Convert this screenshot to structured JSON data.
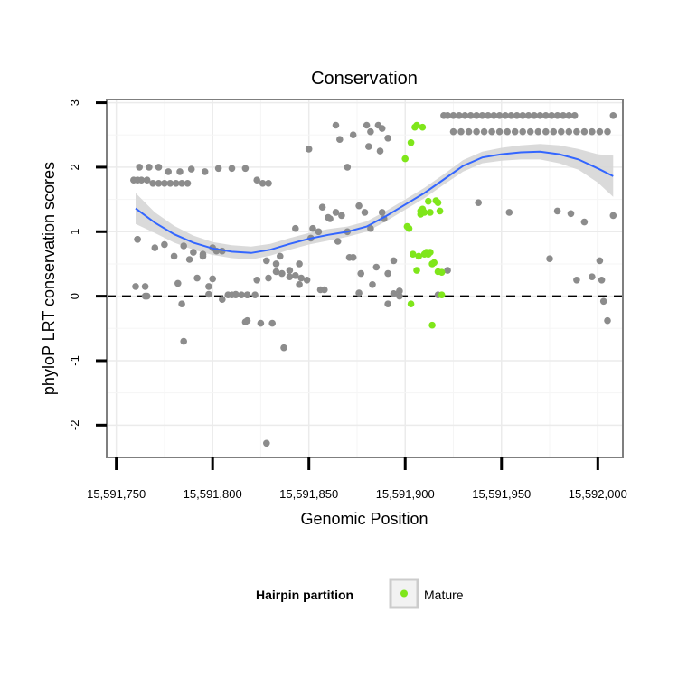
{
  "chart_data": {
    "type": "scatter",
    "title": "Conservation",
    "xlabel": "Genomic Position",
    "ylabel": "phyloP LRT conservation scores",
    "xlim": [
      15591745,
      15592013
    ],
    "ylim": [
      -2.5,
      3.05
    ],
    "x_ticks": [
      15591750,
      15591800,
      15591850,
      15591900,
      15591950,
      15592000
    ],
    "x_tick_labels": [
      "15,591,750",
      "15,591,800",
      "15,591,850",
      "15,591,900",
      "15,591,950",
      "15,592,000"
    ],
    "y_ticks": [
      -2,
      -1,
      0,
      1,
      2,
      3
    ],
    "y_tick_labels": [
      "-2",
      "-1",
      "0",
      "1",
      "2",
      "3"
    ],
    "grid": true,
    "reference_line": {
      "y": 0,
      "style": "dashed"
    },
    "legend": {
      "title": "Hairpin partition",
      "placement": "bottom",
      "entries": [
        "Mature"
      ]
    },
    "colors": {
      "other": "#8c8c8c",
      "mature": "#7fe61a",
      "smooth": "#3366ff",
      "band": "#d6d6d6",
      "panel_border": "#7f7f7f"
    },
    "series": [
      {
        "group": "other",
        "x": [
          15591759,
          15591761,
          15591763,
          15591766,
          15591769,
          15591772,
          15591775,
          15591778,
          15591781,
          15591784,
          15591787,
          15591762,
          15591767,
          15591772,
          15591777,
          15591783,
          15591789,
          15591796,
          15591803,
          15591810,
          15591817,
          15591823,
          15591826,
          15591829,
          15591760,
          15591765,
          15591770,
          15591775,
          15591780,
          15591785,
          15591790,
          15591795,
          15591800,
          15591805,
          15591810,
          15591815,
          15591818,
          15591822,
          15591828,
          15591833,
          15591836,
          15591840,
          15591843,
          15591846,
          15591849,
          15591852,
          15591855,
          15591858,
          15591861,
          15591864,
          15591867,
          15591870,
          15591873,
          15591876,
          15591879,
          15591882,
          15591885,
          15591888,
          15591891,
          15591894,
          15591897,
          15591761,
          15591766,
          15591782,
          15591788,
          15591795,
          15591798,
          15591802,
          15591808,
          15591812,
          15591817,
          15591823,
          15591829,
          15591835,
          15591840,
          15591845,
          15591851,
          15591856,
          15591860,
          15591865,
          15591871,
          15591877,
          15591883,
          15591889,
          15591761,
          15591765,
          15591784,
          15591792,
          15591798,
          15591805,
          15591812,
          15591818,
          15591825,
          15591831,
          15591837,
          15591843,
          15591850,
          15591857,
          15591864,
          15591870,
          15591876,
          15591882,
          15591888,
          15591894,
          15591785,
          15591800,
          15591818,
          15591828,
          15591845,
          15591833,
          15591866,
          15591873,
          15591881,
          15591887,
          15591891,
          15591917,
          15591922,
          15591938,
          15591954,
          15591975,
          15591986,
          15591989,
          15591997,
          15592001,
          15592003,
          15592005,
          15591979,
          15592008,
          15592002,
          15591993,
          15591920,
          15591922,
          15591925,
          15591928,
          15591931,
          15591934,
          15591937,
          15591940,
          15591943,
          15591946,
          15591949,
          15591952,
          15591955,
          15591958,
          15591961,
          15591964,
          15591967,
          15591970,
          15591973,
          15591976,
          15591979,
          15591982,
          15591985,
          15591988,
          15591925,
          15591929,
          15591933,
          15591937,
          15591941,
          15591945,
          15591949,
          15591953,
          15591957,
          15591961,
          15591965,
          15591969,
          15591973,
          15591977,
          15591981,
          15591985,
          15591989,
          15591993,
          15591997,
          15592001,
          15592005,
          15592008,
          15591891,
          15591897,
          15591886,
          15591880
        ],
        "y": [
          1.8,
          1.8,
          1.8,
          1.8,
          1.75,
          1.75,
          1.75,
          1.75,
          1.75,
          1.75,
          1.75,
          2.0,
          2.0,
          2.0,
          1.93,
          1.93,
          1.97,
          1.93,
          1.98,
          1.98,
          1.98,
          1.8,
          1.75,
          1.75,
          0.15,
          0.15,
          0.75,
          0.8,
          0.62,
          0.78,
          0.68,
          0.62,
          0.75,
          0.7,
          0.02,
          0.02,
          0.02,
          0.02,
          0.55,
          0.5,
          0.35,
          0.4,
          0.32,
          0.28,
          0.25,
          1.05,
          1.0,
          0.1,
          1.2,
          1.3,
          1.25,
          1.0,
          0.6,
          1.4,
          1.3,
          1.05,
          0.45,
          1.3,
          0.35,
          0.55,
          0.08,
          0.88,
          0.0,
          0.2,
          0.57,
          0.65,
          0.15,
          0.7,
          0.02,
          0.03,
          -0.4,
          0.25,
          0.28,
          0.62,
          0.3,
          0.18,
          0.9,
          0.1,
          1.22,
          0.85,
          0.6,
          0.35,
          0.18,
          1.2,
          0.88,
          0.0,
          -0.12,
          0.28,
          0.03,
          -0.05,
          0.02,
          -0.38,
          -0.42,
          -0.42,
          -0.8,
          1.05,
          2.28,
          1.38,
          2.65,
          2.0,
          0.05,
          2.55,
          2.6,
          0.04,
          -0.7,
          0.27,
          0.02,
          -2.28,
          0.5,
          0.38,
          2.43,
          2.5,
          2.32,
          2.25,
          2.45,
          0.02,
          0.4,
          1.45,
          1.3,
          0.58,
          1.28,
          0.25,
          0.3,
          0.55,
          -0.08,
          -0.38,
          1.32,
          1.25,
          0.25,
          1.15,
          2.8,
          2.8,
          2.8,
          2.8,
          2.8,
          2.8,
          2.8,
          2.8,
          2.8,
          2.8,
          2.8,
          2.8,
          2.8,
          2.8,
          2.8,
          2.8,
          2.8,
          2.8,
          2.8,
          2.8,
          2.8,
          2.8,
          2.8,
          2.8,
          2.55,
          2.55,
          2.55,
          2.55,
          2.55,
          2.55,
          2.55,
          2.55,
          2.55,
          2.55,
          2.55,
          2.55,
          2.55,
          2.55,
          2.55,
          2.55,
          2.55,
          2.55,
          2.55,
          2.55,
          2.55,
          2.8,
          -0.12,
          0.0,
          2.65,
          2.65
        ]
      },
      {
        "group": "mature",
        "x": [
          15591900,
          15591903,
          15591905,
          15591906,
          15591908,
          15591909,
          15591910,
          15591911,
          15591912,
          15591913,
          15591914,
          15591916,
          15591917,
          15591918,
          15591919,
          15591901,
          15591902,
          15591903,
          15591904,
          15591906,
          15591907,
          15591908,
          15591909,
          15591910,
          15591912,
          15591913,
          15591914,
          15591915,
          15591917,
          15591919
        ],
        "y": [
          2.13,
          2.38,
          2.62,
          2.65,
          1.27,
          1.35,
          1.3,
          0.68,
          0.65,
          0.68,
          0.5,
          1.48,
          1.45,
          1.32,
          0.37,
          1.08,
          1.05,
          -0.12,
          0.65,
          0.4,
          0.62,
          1.32,
          2.62,
          0.65,
          1.47,
          1.3,
          -0.45,
          0.52,
          0.38,
          0.02
        ]
      }
    ],
    "smooth": {
      "x": [
        15591760,
        15591770,
        15591780,
        15591790,
        15591800,
        15591810,
        15591820,
        15591830,
        15591840,
        15591850,
        15591860,
        15591870,
        15591880,
        15591890,
        15591900,
        15591910,
        15591920,
        15591930,
        15591940,
        15591950,
        15591960,
        15591970,
        15591980,
        15591990,
        15592000,
        15592008
      ],
      "y": [
        1.36,
        1.14,
        0.96,
        0.83,
        0.74,
        0.69,
        0.67,
        0.72,
        0.81,
        0.89,
        0.95,
        1.0,
        1.08,
        1.24,
        1.42,
        1.6,
        1.81,
        2.02,
        2.15,
        2.2,
        2.23,
        2.24,
        2.2,
        2.12,
        1.98,
        1.86
      ],
      "lower": [
        1.12,
        0.98,
        0.83,
        0.72,
        0.64,
        0.59,
        0.57,
        0.63,
        0.72,
        0.8,
        0.86,
        0.92,
        1.0,
        1.16,
        1.34,
        1.52,
        1.73,
        1.93,
        2.06,
        2.1,
        2.12,
        2.12,
        2.06,
        1.96,
        1.76,
        1.54
      ],
      "upper": [
        1.6,
        1.3,
        1.09,
        0.94,
        0.84,
        0.79,
        0.77,
        0.81,
        0.9,
        0.98,
        1.04,
        1.08,
        1.16,
        1.32,
        1.5,
        1.68,
        1.89,
        2.11,
        2.24,
        2.3,
        2.34,
        2.36,
        2.34,
        2.28,
        2.2,
        2.18
      ]
    }
  }
}
